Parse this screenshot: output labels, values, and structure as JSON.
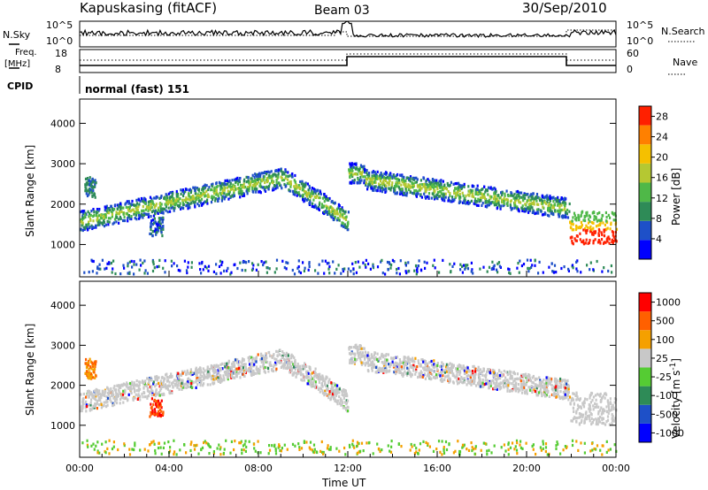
{
  "header": {
    "station": "Kapuskasing (fitACF)",
    "beam": "Beam 03",
    "date": "30/Sep/2010"
  },
  "top_panels": {
    "nsky_label": "N.Sky",
    "nsearch_label": "N.Search",
    "nsky_ticks": [
      "10^5",
      "10^0"
    ],
    "nsearch_ticks": [
      "10^5",
      "10^0"
    ],
    "freq_label_1": "Freq.",
    "freq_label_2": "[MHz]",
    "freq_ticks": [
      "18",
      "8"
    ],
    "nave_label": "Nave",
    "nave_ticks": [
      "60",
      "0"
    ],
    "cpid_label": "CPID",
    "cpid_value": "normal (fast) 151"
  },
  "chart_data": [
    {
      "type": "heatmap",
      "name": "power",
      "xlabel": "",
      "ylabel": "Slant Range [km]",
      "ylim": [
        200,
        4600
      ],
      "yticks": [
        "1000",
        "2000",
        "3000",
        "4000"
      ],
      "xlim_hours": [
        0,
        24
      ],
      "colorbar_label": "Power [dB]",
      "colorbar_ticks": [
        "4",
        "8",
        "12",
        "16",
        "20",
        "24",
        "28"
      ],
      "colorbar_range": [
        0,
        30
      ],
      "colors": [
        "#0000ff",
        "#1e50c8",
        "#2e8b57",
        "#4fb848",
        "#b5c832",
        "#f5c000",
        "#ff8000",
        "#ff2000"
      ]
    },
    {
      "type": "heatmap",
      "name": "velocity",
      "xlabel": "Time UT",
      "ylabel": "Slant Range [km]",
      "ylim": [
        200,
        4600
      ],
      "yticks": [
        "1000",
        "2000",
        "3000",
        "4000"
      ],
      "xticks": [
        "00:00",
        "04:00",
        "08:00",
        "12:00",
        "16:00",
        "20:00",
        "00:00"
      ],
      "colorbar_label": "Velocity [m s",
      "colorbar_label_sup": "-1",
      "colorbar_ticks": [
        "1000",
        "500",
        "100",
        "25",
        "-25",
        "-100",
        "-500",
        "-1000"
      ],
      "colors": [
        "#0000ff",
        "#1e50c8",
        "#2e8b57",
        "#55cc33",
        "#c8c8c8",
        "#f5a000",
        "#ff6000",
        "#ff0000"
      ]
    }
  ]
}
